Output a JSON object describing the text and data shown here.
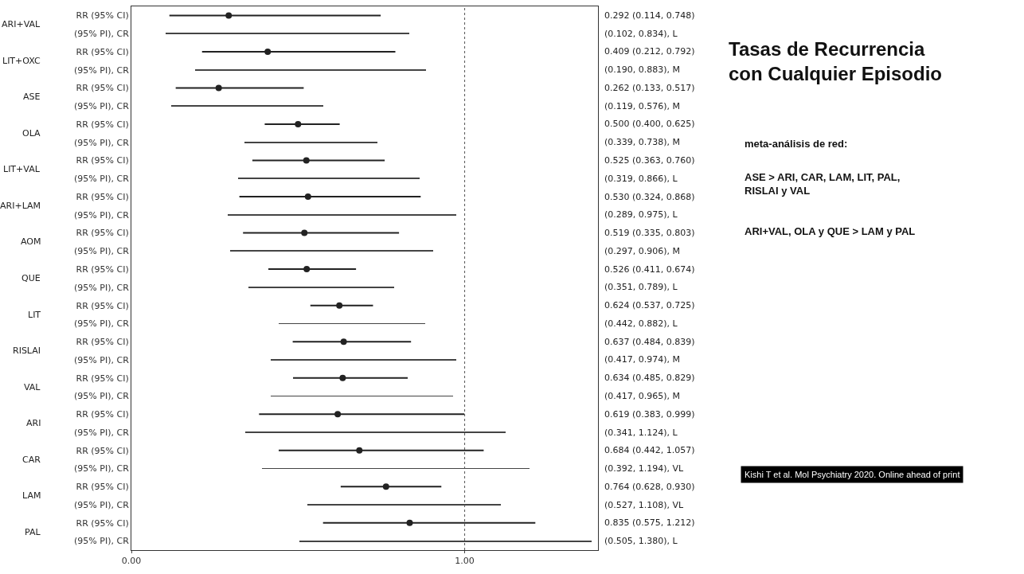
{
  "chart_data": {
    "type": "scatter",
    "title": "Tasas de Recurrencia\ncon Cualquier Episodio",
    "categories": [
      "RR (95% CI)",
      "(95% PI), CR",
      "RR (95% CI)",
      "(95% PI), CR",
      "RR (95% CI)",
      "(95% PI), CR",
      "RR (95% CI)",
      "(95% PI), CR",
      "RR (95% CI)",
      "(95% PI), CR",
      "RR (95% CI)",
      "(95% PI), CR",
      "RR (95% CI)",
      "(95% PI), CR",
      "RR (95% CI)",
      "(95% PI), CR",
      "RR (95% CI)",
      "(95% PI), CR",
      "RR (95% CI)",
      "(95% PI), CR",
      "RR (95% CI)",
      "(95% PI), CR",
      "RR (95% CI)",
      "(95% PI), CR",
      "RR (95% CI)",
      "(95% PI), CR",
      "RR (95% CI)",
      "(95% PI), CR",
      "RR (95% CI)",
      "(95% PI), CR"
    ],
    "series": [
      {
        "color": "#222222",
        "values": [
          0.292,
          null,
          0.409,
          null,
          0.262,
          null,
          0.5,
          null,
          0.525,
          null,
          0.53,
          null,
          0.519,
          null,
          0.526,
          null,
          0.624,
          null,
          0.637,
          null,
          0.634,
          null,
          0.619,
          null,
          0.684,
          null,
          0.764,
          null,
          0.835,
          null
        ],
        "errors": [
          [
            0.114,
            0.748
          ],
          null,
          [
            0.212,
            0.792
          ],
          null,
          [
            0.133,
            0.517
          ],
          null,
          [
            0.4,
            0.625
          ],
          null,
          [
            0.363,
            0.76
          ],
          null,
          [
            0.324,
            0.868
          ],
          null,
          [
            0.335,
            0.803
          ],
          null,
          [
            0.411,
            0.674
          ],
          null,
          [
            0.537,
            0.725
          ],
          null,
          [
            0.484,
            0.839
          ],
          null,
          [
            0.485,
            0.829
          ],
          null,
          [
            0.383,
            0.999
          ],
          null,
          [
            0.442,
            1.057
          ],
          null,
          [
            0.628,
            0.93
          ],
          null,
          [
            0.575,
            1.212
          ],
          null
        ],
        "value_labels": [
          "0.292 (0.114, 0.748)",
          null,
          "0.409 (0.212, 0.792)",
          null,
          "0.262 (0.133, 0.517)",
          null,
          "0.500 (0.400, 0.625)",
          null,
          "0.525 (0.363, 0.760)",
          null,
          "0.530 (0.324, 0.868)",
          null,
          "0.519 (0.335, 0.803)",
          null,
          "0.526 (0.411, 0.674)",
          null,
          "0.624 (0.537, 0.725)",
          null,
          "0.637 (0.484, 0.839)",
          null,
          "0.634 (0.485, 0.829)",
          null,
          "0.619 (0.383, 0.999)",
          null,
          "0.684 (0.442, 1.057)",
          null,
          "0.764 (0.628, 0.930)",
          null,
          "0.835 (0.575, 1.212)",
          null
        ]
      },
      {
        "type": "bar",
        "color": "#444444",
        "base": [
          null,
          0.102,
          null,
          0.19,
          null,
          0.119,
          null,
          0.339,
          null,
          0.319,
          null,
          0.289,
          null,
          0.297,
          null,
          0.351,
          null,
          0.442,
          null,
          0.417,
          null,
          0.417,
          null,
          0.341,
          null,
          0.392,
          null,
          0.527,
          null,
          0.505
        ],
        "values": [
          null,
          0.732,
          null,
          0.693,
          null,
          0.457,
          null,
          0.399,
          null,
          0.547,
          null,
          0.686,
          null,
          0.609,
          null,
          0.438,
          null,
          0.44,
          null,
          0.557,
          null,
          0.548,
          null,
          0.783,
          null,
          0.802,
          null,
          0.581,
          null,
          0.875
        ],
        "value_labels": [
          null,
          "(0.102, 0.834), L",
          null,
          "(0.190, 0.883), M",
          null,
          "(0.119, 0.576), M",
          null,
          "(0.339, 0.738), M",
          null,
          "(0.319, 0.866), L",
          null,
          "(0.289, 0.975), L",
          null,
          "(0.297, 0.906), M",
          null,
          "(0.351, 0.789), L",
          null,
          "(0.442, 0.882), L",
          null,
          "(0.417, 0.974), M",
          null,
          "(0.417, 0.965), M",
          null,
          "(0.341, 1.124), L",
          null,
          "(0.392, 1.194), VL",
          null,
          "(0.527, 1.108), VL",
          null,
          "(0.505, 1.380), L"
        ]
      }
    ],
    "xlim": [
      0,
      1.4
    ],
    "xticks": [
      {
        "value": 0,
        "label": "0.00"
      },
      {
        "value": 1,
        "label": "1.00"
      }
    ],
    "ref_lines": [
      {
        "axis": "x",
        "value": 1,
        "color": "#555555",
        "line_style": "dotted"
      }
    ],
    "orientation": "horizontal",
    "marker": "circle",
    "grid": false,
    "annotations": [
      "ARI+VAL",
      "LIT+OXC",
      "ASE",
      "OLA",
      "LIT+VAL",
      "ARI+LAM",
      "AOM",
      "QUE",
      "LIT",
      "RISLAI",
      "VAL",
      "ARI",
      "CAR",
      "LAM",
      "PAL",
      "meta-análisis de red:",
      "ASE > ARI, CAR, LAM, LIT, PAL,\nRISLAI y VAL",
      "ARI+VAL, OLA y QUE > LAM y PAL",
      "Kishi T et al. Mol Psychiatry 2020. Online ahead of print"
    ]
  }
}
